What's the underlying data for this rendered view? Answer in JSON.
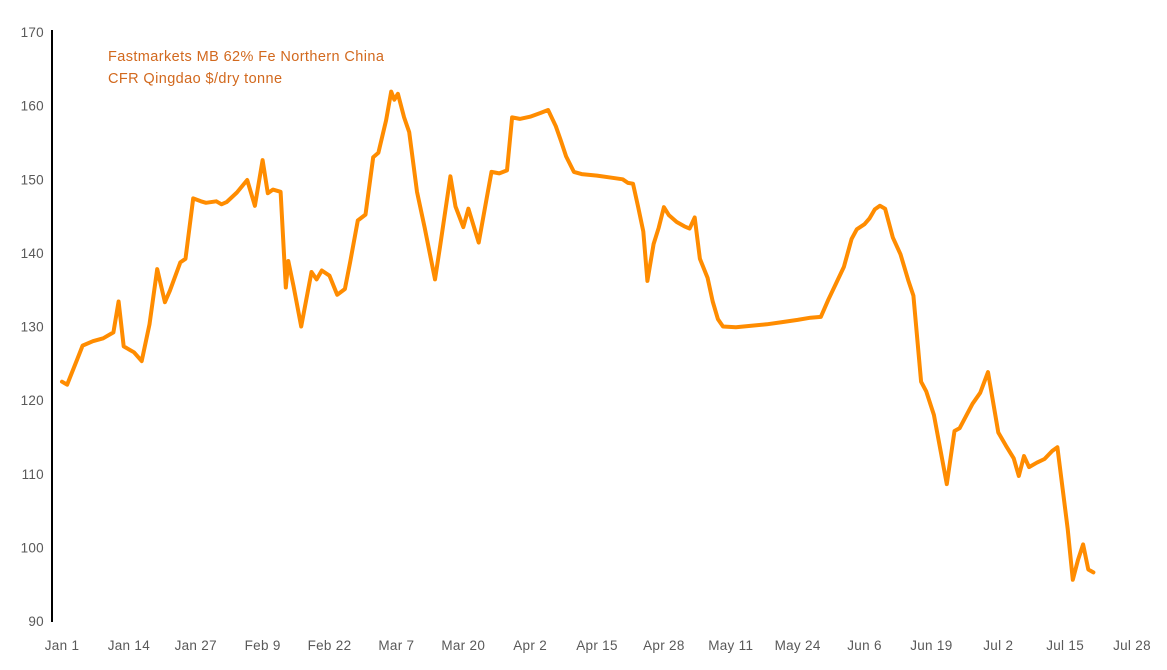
{
  "chart_data": {
    "type": "line",
    "title_lines": [
      "Fastmarkets MB 62% Fe Northern China",
      "CFR Qingdao $/dry tonne"
    ],
    "ylabel": "",
    "xlabel": "",
    "ylim": [
      90,
      170
    ],
    "yticks": [
      170,
      160,
      150,
      140,
      130,
      120,
      110,
      100,
      90
    ],
    "xticks": [
      {
        "label": "Jan 1",
        "day": 0
      },
      {
        "label": "Jan 14",
        "day": 13
      },
      {
        "label": "Jan 27",
        "day": 26
      },
      {
        "label": "Feb 9",
        "day": 39
      },
      {
        "label": "Feb 22",
        "day": 52
      },
      {
        "label": "Mar 7",
        "day": 65
      },
      {
        "label": "Mar 20",
        "day": 78
      },
      {
        "label": "Apr 2",
        "day": 91
      },
      {
        "label": "Apr 15",
        "day": 104
      },
      {
        "label": "Apr 28",
        "day": 117
      },
      {
        "label": "May 11",
        "day": 130
      },
      {
        "label": "May 24",
        "day": 143
      },
      {
        "label": "Jun 6",
        "day": 156
      },
      {
        "label": "Jun 19",
        "day": 169
      },
      {
        "label": "Jul 2",
        "day": 182
      },
      {
        "label": "Jul 15",
        "day": 195
      },
      {
        "label": "Jul 28",
        "day": 208
      }
    ],
    "x_day_range": [
      0,
      208
    ],
    "grid": false,
    "legend": "none",
    "colors": {
      "line": "#FF8C00",
      "annotation": "#D2691E",
      "tick_label": "#595959",
      "axis": "#000000",
      "background": "#FFFFFF"
    },
    "series": [
      {
        "points": [
          [
            0,
            122.5
          ],
          [
            1,
            122.1
          ],
          [
            3,
            125.6
          ],
          [
            4,
            127.4
          ],
          [
            6,
            128.0
          ],
          [
            8,
            128.4
          ],
          [
            10,
            129.2
          ],
          [
            11,
            133.4
          ],
          [
            12,
            127.3
          ],
          [
            14,
            126.5
          ],
          [
            15.5,
            125.3
          ],
          [
            17,
            130.3
          ],
          [
            18.5,
            137.8
          ],
          [
            20,
            133.3
          ],
          [
            21,
            134.9
          ],
          [
            23,
            138.7
          ],
          [
            24,
            139.2
          ],
          [
            25.5,
            147.4
          ],
          [
            27,
            147.0
          ],
          [
            28,
            146.8
          ],
          [
            30,
            147.0
          ],
          [
            31,
            146.6
          ],
          [
            32,
            146.9
          ],
          [
            34,
            148.2
          ],
          [
            36,
            149.9
          ],
          [
            37.5,
            146.4
          ],
          [
            39,
            152.6
          ],
          [
            40,
            148.1
          ],
          [
            41,
            148.6
          ],
          [
            42.5,
            148.3
          ],
          [
            43.5,
            135.3
          ],
          [
            44,
            138.9
          ],
          [
            45,
            135.5
          ],
          [
            46.5,
            130.0
          ],
          [
            48.5,
            137.4
          ],
          [
            49.5,
            136.4
          ],
          [
            50.5,
            137.6
          ],
          [
            52,
            136.9
          ],
          [
            53.5,
            134.3
          ],
          [
            55,
            135.1
          ],
          [
            56,
            138.7
          ],
          [
            57.5,
            144.4
          ],
          [
            59,
            145.2
          ],
          [
            60.5,
            153.0
          ],
          [
            61.5,
            153.6
          ],
          [
            63,
            158.0
          ],
          [
            64,
            161.9
          ],
          [
            64.6,
            160.8
          ],
          [
            65.3,
            161.6
          ],
          [
            66.5,
            158.4
          ],
          [
            67.5,
            156.4
          ],
          [
            69,
            148.3
          ],
          [
            70.5,
            143.4
          ],
          [
            72.5,
            136.4
          ],
          [
            73.5,
            140.9
          ],
          [
            75.5,
            150.4
          ],
          [
            76.5,
            146.3
          ],
          [
            78,
            143.5
          ],
          [
            79,
            146.0
          ],
          [
            81,
            141.4
          ],
          [
            82.5,
            147.2
          ],
          [
            83.5,
            151.0
          ],
          [
            85,
            150.8
          ],
          [
            86.5,
            151.2
          ],
          [
            87.5,
            158.4
          ],
          [
            89,
            158.2
          ],
          [
            91,
            158.5
          ],
          [
            93,
            159.0
          ],
          [
            94.5,
            159.4
          ],
          [
            96,
            157.2
          ],
          [
            97,
            155.2
          ],
          [
            98,
            153.1
          ],
          [
            99.5,
            151.0
          ],
          [
            101,
            150.7
          ],
          [
            104,
            150.5
          ],
          [
            107,
            150.2
          ],
          [
            109,
            150.0
          ],
          [
            110,
            149.5
          ],
          [
            111,
            149.4
          ],
          [
            112,
            146.2
          ],
          [
            113,
            142.9
          ],
          [
            113.8,
            136.2
          ],
          [
            115,
            141.2
          ],
          [
            116,
            143.4
          ],
          [
            117,
            146.2
          ],
          [
            118,
            145.1
          ],
          [
            119.5,
            144.2
          ],
          [
            121,
            143.6
          ],
          [
            122,
            143.3
          ],
          [
            123,
            144.8
          ],
          [
            124,
            139.2
          ],
          [
            125.5,
            136.6
          ],
          [
            126.5,
            133.4
          ],
          [
            127.5,
            131.0
          ],
          [
            128.5,
            130.0
          ],
          [
            131,
            129.9
          ],
          [
            134,
            130.1
          ],
          [
            137,
            130.3
          ],
          [
            140,
            130.6
          ],
          [
            143,
            130.9
          ],
          [
            145.5,
            131.2
          ],
          [
            147.5,
            131.3
          ],
          [
            149,
            133.7
          ],
          [
            150.5,
            135.9
          ],
          [
            152,
            138.1
          ],
          [
            153.5,
            141.9
          ],
          [
            154.5,
            143.2
          ],
          [
            156,
            143.9
          ],
          [
            157,
            144.7
          ],
          [
            158,
            145.9
          ],
          [
            159,
            146.4
          ],
          [
            160,
            146.0
          ],
          [
            161.5,
            142.1
          ],
          [
            163,
            139.8
          ],
          [
            164.5,
            136.3
          ],
          [
            165.5,
            134.2
          ],
          [
            167,
            122.5
          ],
          [
            168,
            121.2
          ],
          [
            169.5,
            118.0
          ],
          [
            172,
            108.6
          ],
          [
            173.5,
            115.8
          ],
          [
            174.5,
            116.2
          ],
          [
            177,
            119.5
          ],
          [
            178.5,
            121.0
          ],
          [
            180,
            123.8
          ],
          [
            182,
            115.6
          ],
          [
            183.5,
            113.8
          ],
          [
            185,
            112.1
          ],
          [
            186,
            109.7
          ],
          [
            187,
            112.4
          ],
          [
            188,
            110.9
          ],
          [
            189.5,
            111.5
          ],
          [
            191,
            112.0
          ],
          [
            192.5,
            113.1
          ],
          [
            193.5,
            113.6
          ],
          [
            194.5,
            108.0
          ],
          [
            195.5,
            102.5
          ],
          [
            196.5,
            95.6
          ],
          [
            197.5,
            98.3
          ],
          [
            198.5,
            100.4
          ],
          [
            199.5,
            97.0
          ],
          [
            200.5,
            96.6
          ]
        ]
      }
    ]
  }
}
